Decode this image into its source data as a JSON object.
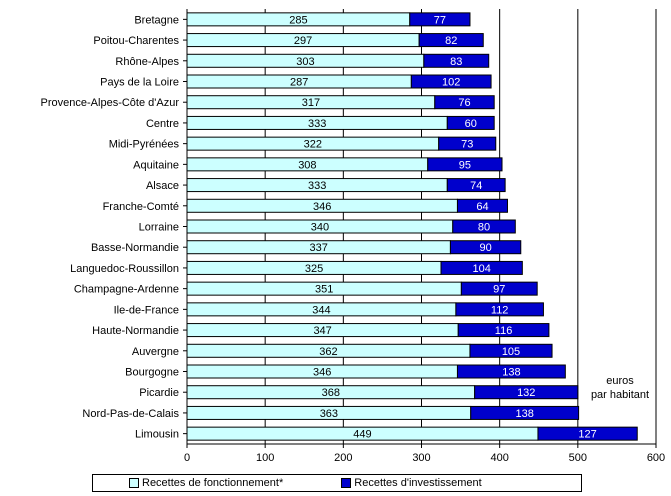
{
  "chart_data": {
    "type": "bar",
    "orientation": "horizontal",
    "stacked": true,
    "categories": [
      "Bretagne",
      "Poitou-Charentes",
      "Rhône-Alpes",
      "Pays de la Loire",
      "Provence-Alpes-Côte d'Azur",
      "Centre",
      "Midi-Pyrénées",
      "Aquitaine",
      "Alsace",
      "Franche-Comté",
      "Lorraine",
      "Basse-Normandie",
      "Languedoc-Roussillon",
      "Champagne-Ardenne",
      "Ile-de-France",
      "Haute-Normandie",
      "Auvergne",
      "Bourgogne",
      "Picardie",
      "Nord-Pas-de-Calais",
      "Limousin"
    ],
    "series": [
      {
        "name": "Recettes de fonctionnement*",
        "color": "#ccffff",
        "values": [
          285,
          297,
          303,
          287,
          317,
          333,
          322,
          308,
          333,
          346,
          340,
          337,
          325,
          351,
          344,
          347,
          362,
          346,
          368,
          363,
          449
        ]
      },
      {
        "name": "Recettes d'investissement",
        "color": "#0000cc",
        "values": [
          77,
          82,
          83,
          102,
          76,
          60,
          73,
          95,
          74,
          64,
          80,
          90,
          104,
          97,
          112,
          116,
          105,
          138,
          132,
          138,
          127
        ]
      }
    ],
    "xlim": [
      0,
      600
    ],
    "xticks": [
      0,
      100,
      200,
      300,
      400,
      500,
      600
    ],
    "unit_label_line1": "euros",
    "unit_label_line2": "par habitant",
    "grid": "vertical",
    "legend_position": "bottom"
  }
}
